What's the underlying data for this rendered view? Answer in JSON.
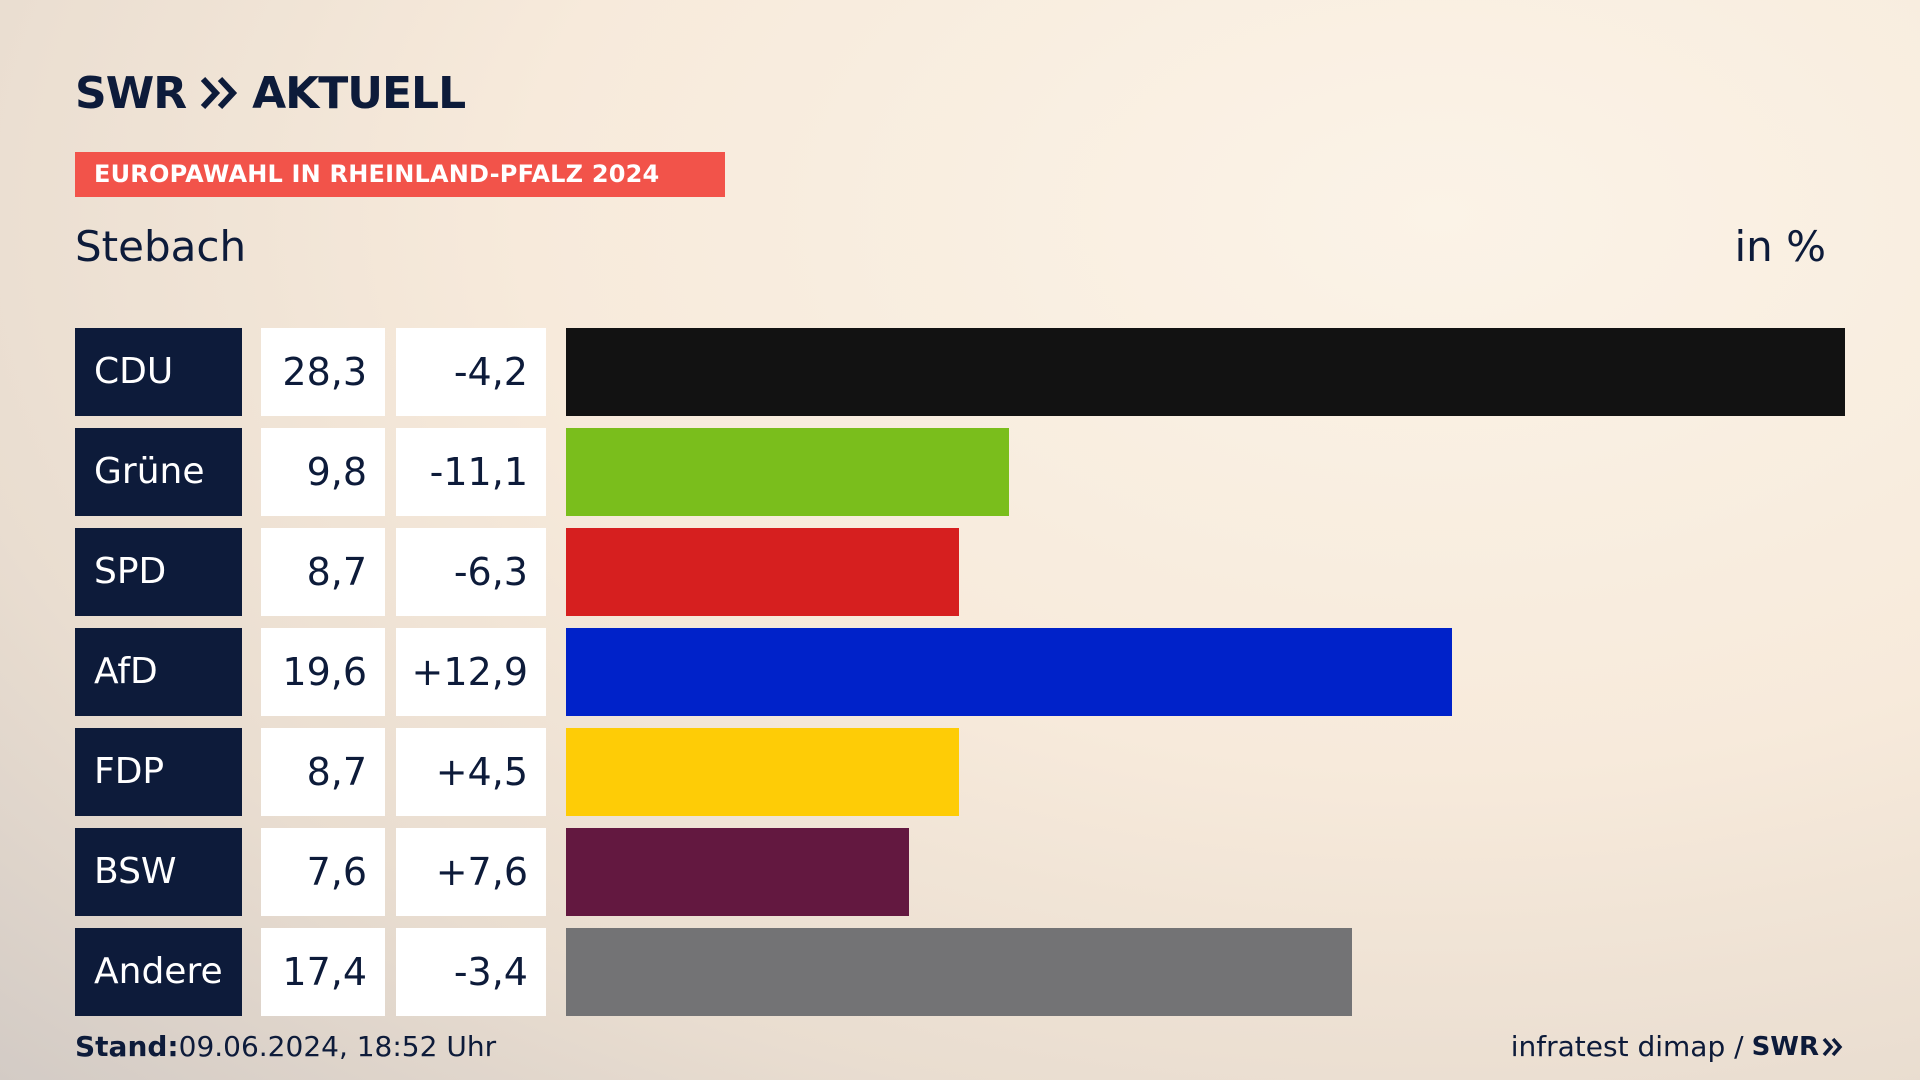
{
  "brand": {
    "name_left": "SWR",
    "name_right": "AKTUELL"
  },
  "banner": "EUROPAWAHL IN RHEINLAND-PFALZ 2024",
  "place": "Stebach",
  "unit": "in %",
  "colors": {
    "navy": "#0d1b3a",
    "banner": "#f2534a"
  },
  "chart_data": {
    "type": "bar",
    "orientation": "horizontal",
    "unit": "in %",
    "categories": [
      "CDU",
      "Grüne",
      "SPD",
      "AfD",
      "FDP",
      "BSW",
      "Andere"
    ],
    "values": [
      28.3,
      9.8,
      8.7,
      19.6,
      8.7,
      7.6,
      17.4
    ],
    "value_labels": [
      "28,3",
      "9,8",
      "8,7",
      "19,6",
      "8,7",
      "7,6",
      "17,4"
    ],
    "diff_labels": [
      "-4,2",
      "-11,1",
      "-6,3",
      "+12,9",
      "+4,5",
      "+7,6",
      "-3,4"
    ],
    "colors": [
      "#121212",
      "#7abe1c",
      "#d61f1f",
      "#0022c9",
      "#fecc06",
      "#631840",
      "#737375"
    ],
    "xlim": [
      0,
      28.3
    ],
    "grid": false,
    "legend": "none"
  },
  "footer": {
    "stand_label": "Stand:",
    "stand_value": "09.06.2024, 18:52 Uhr",
    "source": "infratest dimap /",
    "source_brand": "SWR"
  }
}
